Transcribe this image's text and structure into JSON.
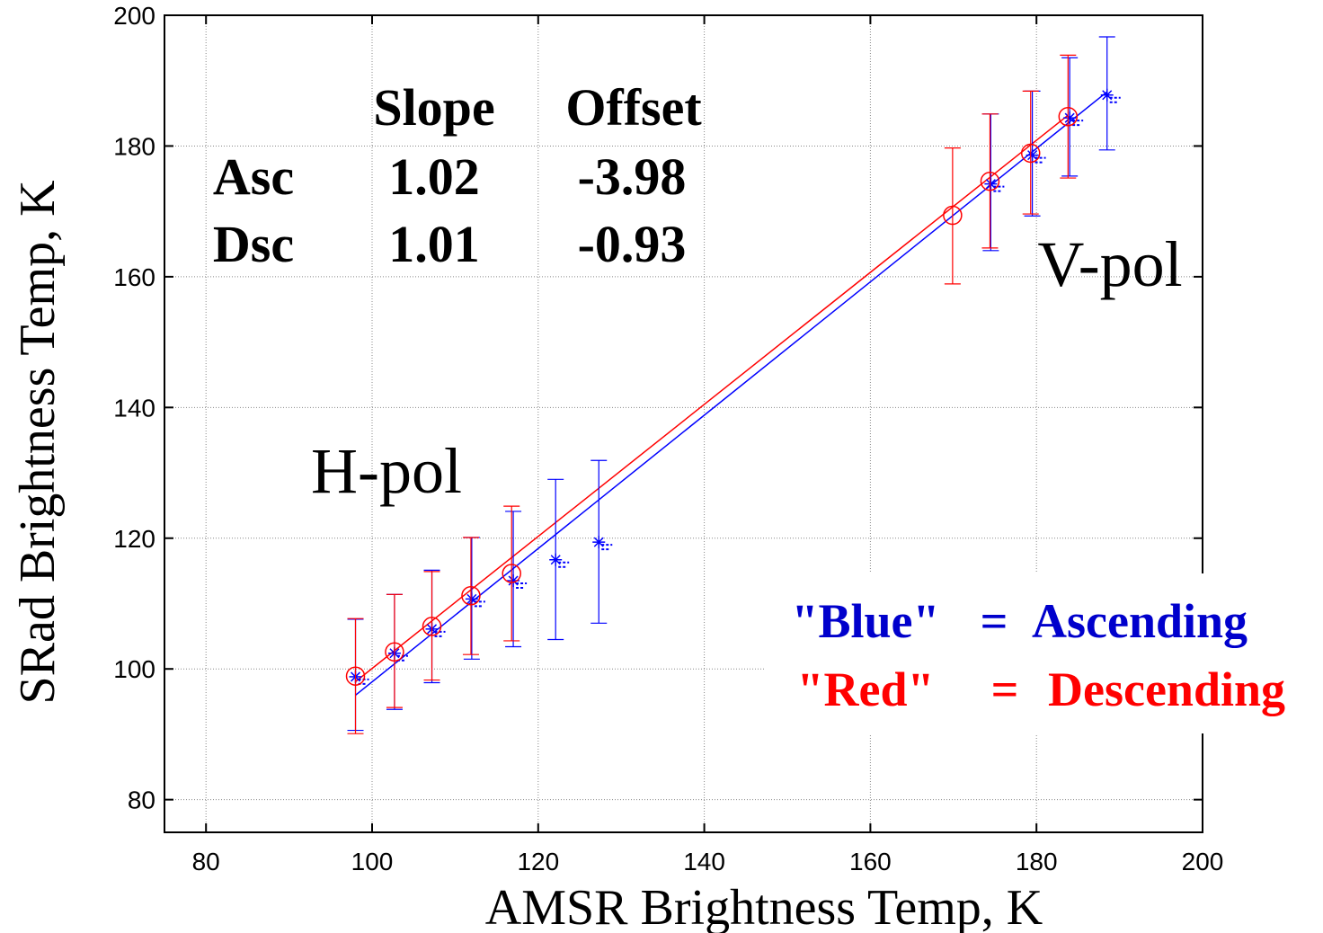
{
  "chart_data": {
    "type": "scatter",
    "xlabel": "AMSR Brightness Temp, K",
    "ylabel": "SRad Brightness Temp, K",
    "xlim": [
      75,
      200
    ],
    "ylim": [
      75,
      200
    ],
    "x_ticks": [
      80,
      100,
      120,
      140,
      160,
      180,
      200
    ],
    "y_ticks": [
      80,
      100,
      120,
      140,
      160,
      180,
      200
    ],
    "grid": true,
    "annotations": {
      "h_pol": "H-pol",
      "v_pol": "V-pol"
    },
    "fit_table": {
      "col_slope": "Slope",
      "col_offset": "Offset",
      "rows": [
        {
          "name": "Asc",
          "slope": "1.02",
          "offset": "-3.98"
        },
        {
          "name": "Dsc",
          "slope": "1.01",
          "offset": "-0.93"
        }
      ]
    },
    "legend": {
      "blue_key": "\"Blue\"",
      "blue_eq": "=",
      "blue_value": "Ascending",
      "red_key": "\"Red\"",
      "red_eq": "=",
      "red_value": "Descending"
    },
    "colors": {
      "ascending": "#0000cc",
      "descending": "#ff0000",
      "grid": "#888888"
    },
    "series": [
      {
        "color": "#0000ff",
        "marker": "asterisk",
        "points": [
          {
            "x": 98.0,
            "y": 98.8,
            "lo": 90.6,
            "hi": 107.6
          },
          {
            "x": 102.7,
            "y": 102.4,
            "lo": 93.8,
            "hi": 111.4
          },
          {
            "x": 107.2,
            "y": 106.1,
            "lo": 97.9,
            "hi": 115.1
          },
          {
            "x": 112.0,
            "y": 110.7,
            "lo": 101.5,
            "hi": 120.1
          },
          {
            "x": 117.0,
            "y": 113.5,
            "lo": 103.4,
            "hi": 124.1
          },
          {
            "x": 122.1,
            "y": 116.7,
            "lo": 104.5,
            "hi": 129.0
          },
          {
            "x": 127.3,
            "y": 119.4,
            "lo": 107.0,
            "hi": 131.9
          },
          {
            "x": 174.5,
            "y": 174.2,
            "lo": 164.0,
            "hi": 184.9
          },
          {
            "x": 179.5,
            "y": 178.6,
            "lo": 169.3,
            "hi": 188.4
          },
          {
            "x": 184.0,
            "y": 184.3,
            "lo": 175.4,
            "hi": 193.5
          },
          {
            "x": 188.5,
            "y": 187.8,
            "lo": 179.4,
            "hi": 196.7
          }
        ],
        "fit": {
          "slope": 1.02,
          "offset": -3.98,
          "x_range": [
            98.0,
            188.5
          ]
        }
      },
      {
        "color": "#ff0000",
        "marker": "circle",
        "points": [
          {
            "x": 98.0,
            "y": 98.9,
            "lo": 90.1,
            "hi": 107.7
          },
          {
            "x": 102.7,
            "y": 102.6,
            "lo": 94.1,
            "hi": 111.4
          },
          {
            "x": 107.2,
            "y": 106.5,
            "lo": 98.3,
            "hi": 114.9
          },
          {
            "x": 111.9,
            "y": 111.2,
            "lo": 102.2,
            "hi": 120.1
          },
          {
            "x": 116.8,
            "y": 114.6,
            "lo": 104.3,
            "hi": 124.9
          },
          {
            "x": 169.9,
            "y": 169.4,
            "lo": 158.9,
            "hi": 179.7
          },
          {
            "x": 174.4,
            "y": 174.6,
            "lo": 164.4,
            "hi": 184.9
          },
          {
            "x": 179.3,
            "y": 178.9,
            "lo": 169.6,
            "hi": 188.4
          },
          {
            "x": 183.8,
            "y": 184.5,
            "lo": 175.1,
            "hi": 193.9
          }
        ],
        "fit": {
          "slope": 1.01,
          "offset": -0.93,
          "x_range": [
            98.0,
            183.8
          ]
        }
      }
    ]
  }
}
